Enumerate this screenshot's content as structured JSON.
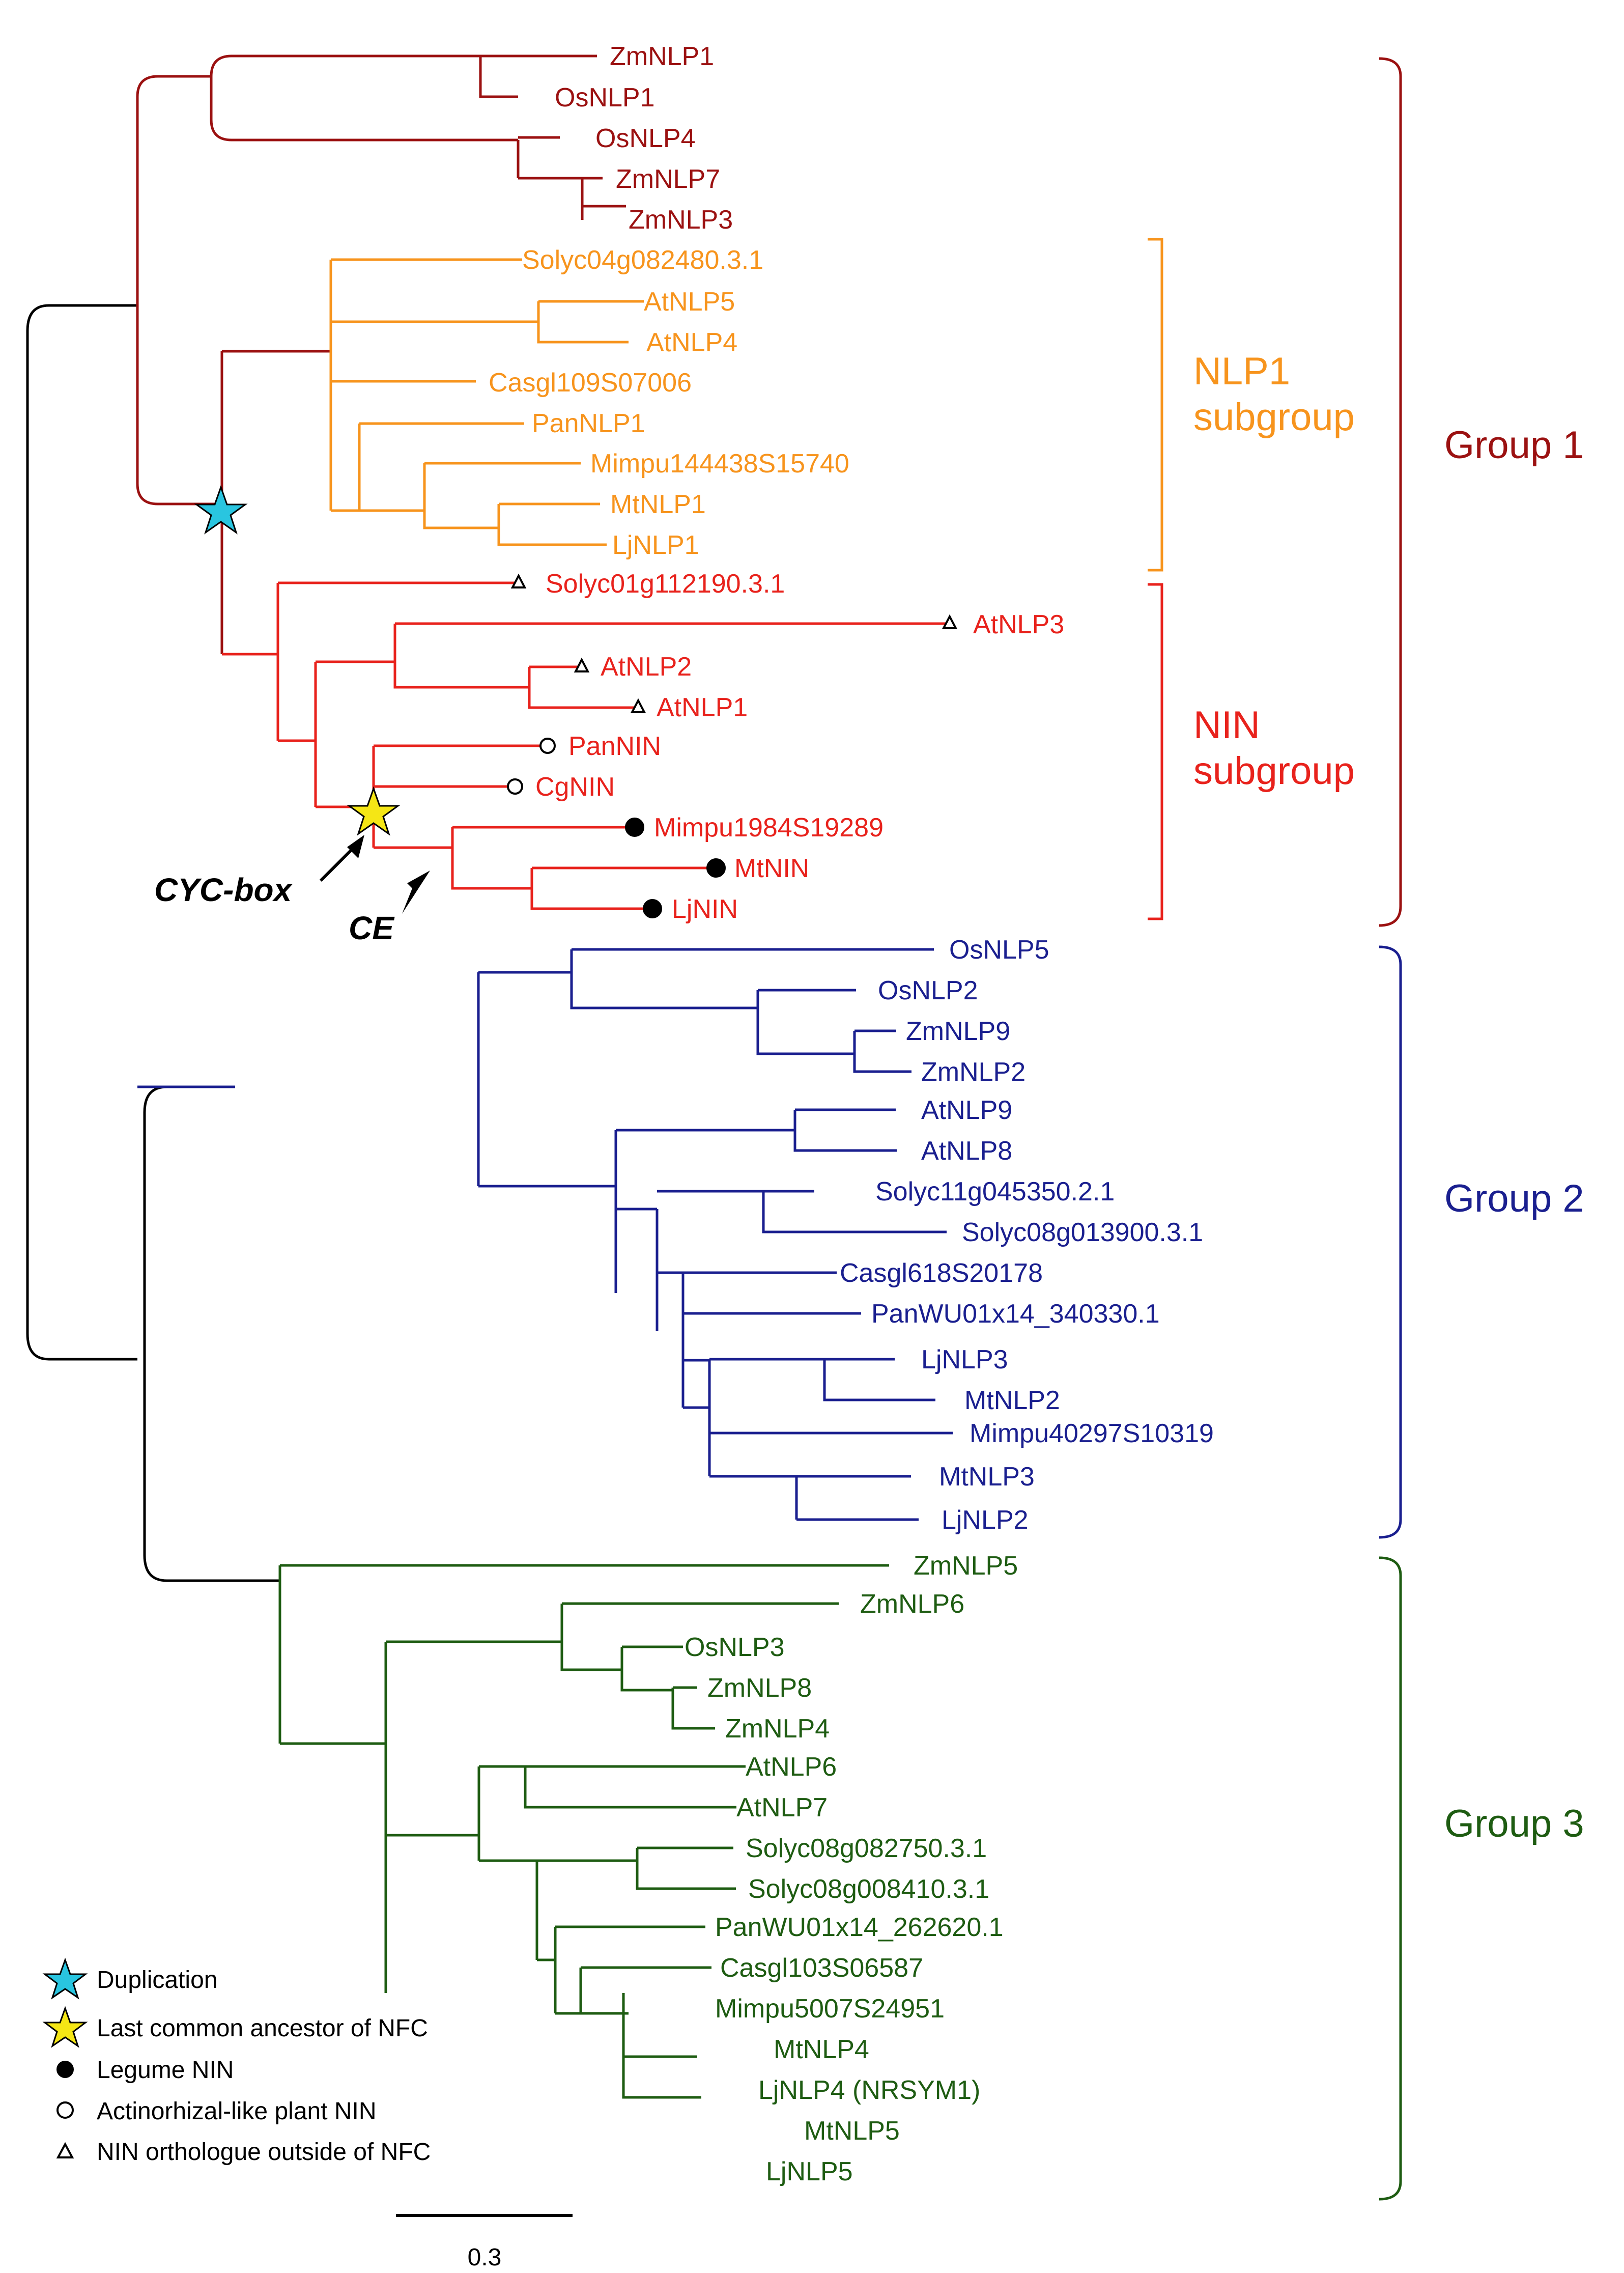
{
  "colors": {
    "root": "#000000",
    "group1": "#9b1111",
    "nlp1": "#f7941d",
    "nin": "#e8221c",
    "group2": "#1a1f8f",
    "group3": "#1e5c12",
    "dup_star": "#29c5e0",
    "lca_star": "#f5e615"
  },
  "leaves": [
    "ZmNLP1",
    "OsNLP1",
    "OsNLP4",
    "ZmNLP7",
    "ZmNLP3",
    "Solyc04g082480.3.1",
    "AtNLP5",
    "AtNLP4",
    "Casgl109S07006",
    "PanNLP1",
    "Mimpu144438S15740",
    "MtNLP1",
    "LjNLP1",
    "Solyc01g112190.3.1",
    "AtNLP3",
    "AtNLP2",
    "AtNLP1",
    "PanNIN",
    "CgNIN",
    "Mimpu1984S19289",
    "MtNIN",
    "LjNIN",
    "OsNLP5",
    "OsNLP2",
    "ZmNLP9",
    "ZmNLP2",
    "AtNLP9",
    "AtNLP8",
    "Solyc11g045350.2.1",
    "Solyc08g013900.3.1",
    "Casgl618S20178",
    "PanWU01x14_340330.1",
    "LjNLP3",
    "MtNLP2",
    "Mimpu40297S10319",
    "MtNLP3",
    "LjNLP2",
    "ZmNLP5",
    "ZmNLP6",
    "OsNLP3",
    "ZmNLP8",
    "ZmNLP4",
    "AtNLP6",
    "AtNLP7",
    "Solyc08g082750.3.1",
    "Solyc08g008410.3.1",
    "PanWU01x14_262620.1",
    "Casgl103S06587",
    "Mimpu5007S24951",
    "MtNLP4",
    "LjNLP4 (NRSYM1)",
    "MtNLP5",
    "LjNLP5"
  ],
  "groups": {
    "group1": "Group 1",
    "group2": "Group 2",
    "group3": "Group 3",
    "nlp1_line1": "NLP1",
    "nlp1_line2": "subgroup",
    "nin_line1": "NIN",
    "nin_line2": "subgroup"
  },
  "annotations": {
    "cyc_box": "CYC-box",
    "ce": "CE"
  },
  "legend": {
    "duplication": "Duplication",
    "lca": "Last common ancestor of NFC",
    "legume": "Legume NIN",
    "actino": "Actinorhizal-like plant NIN",
    "ortholog": "NIN orthologue outside of NFC"
  },
  "scale_bar": {
    "label": "0.3"
  }
}
